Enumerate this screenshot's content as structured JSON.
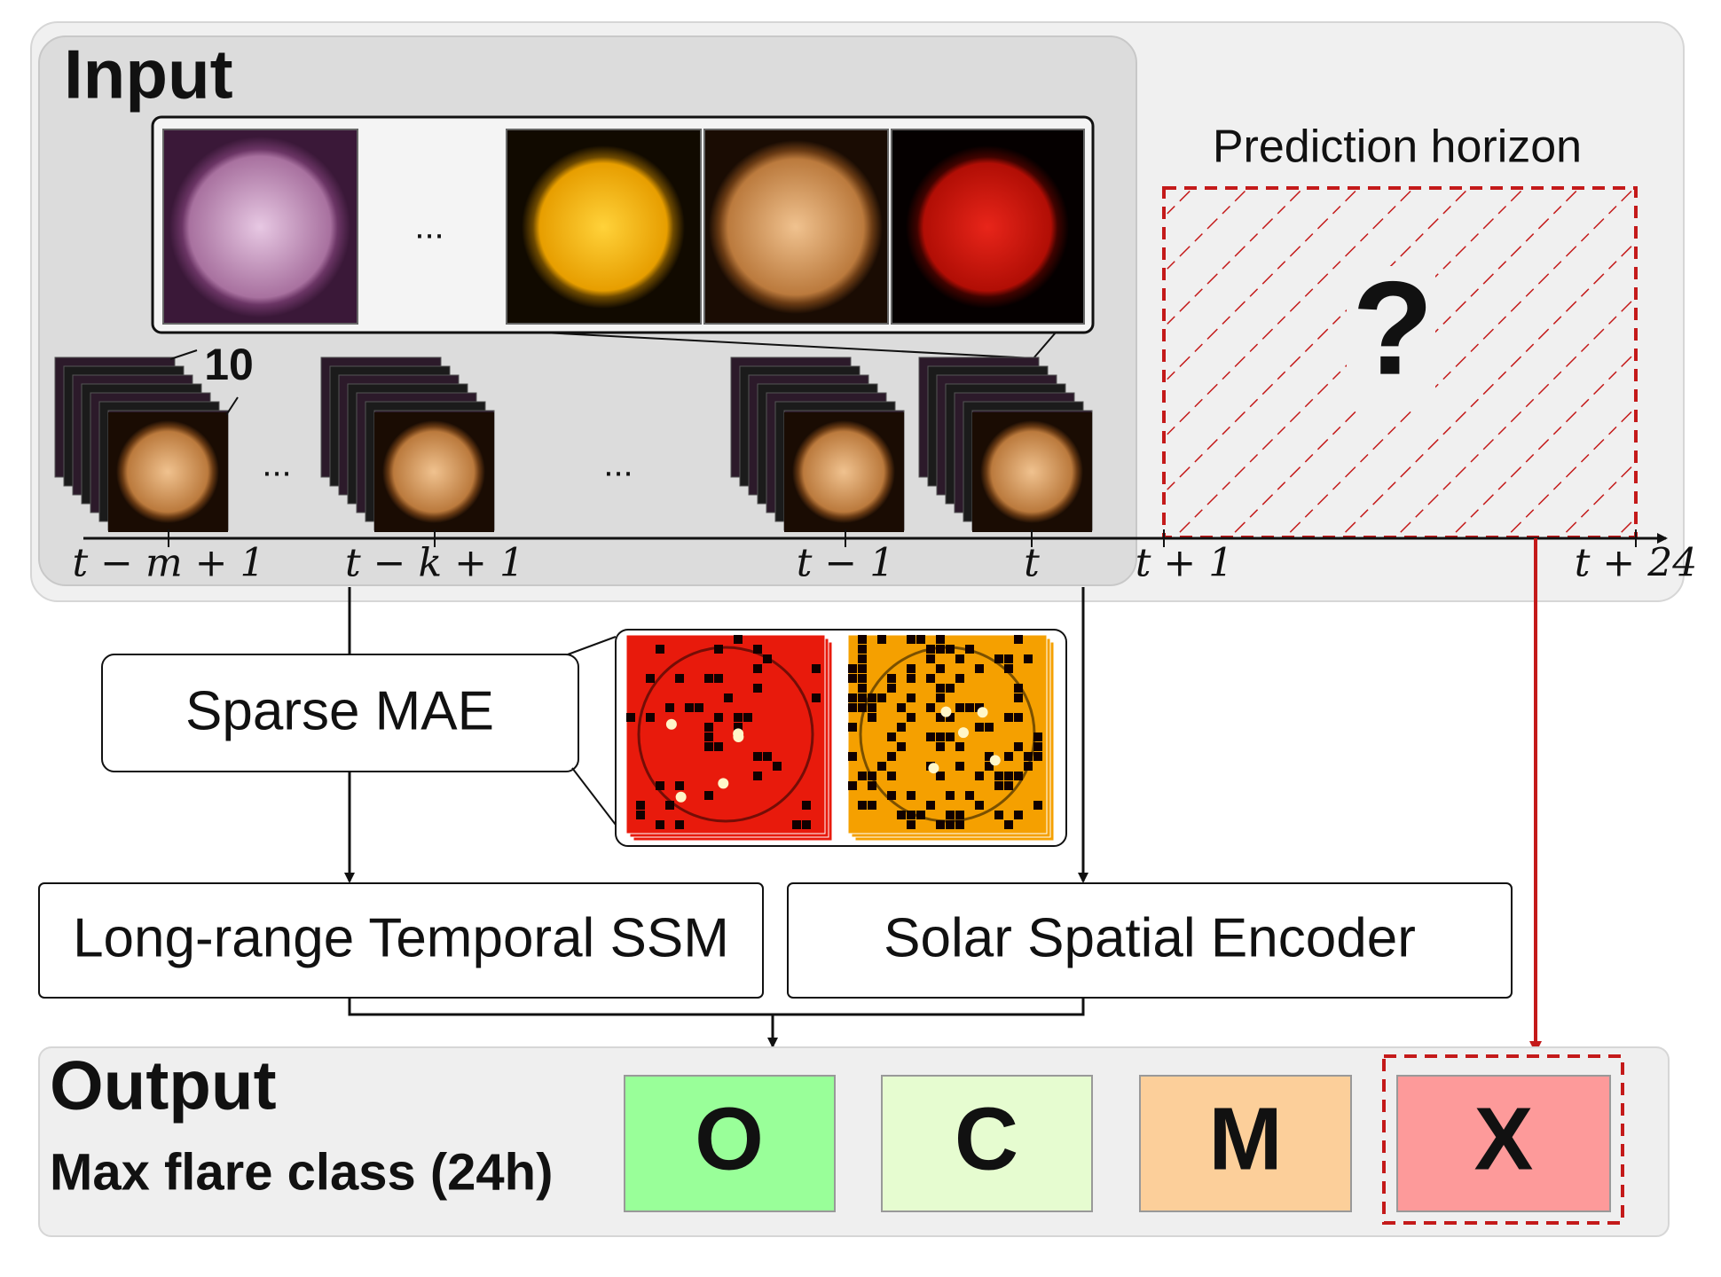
{
  "input": {
    "title": "Input",
    "ellipses": [
      "...",
      "...",
      "..."
    ],
    "channel_count": "10"
  },
  "timeline": {
    "labels": [
      "t − m + 1",
      "t − k + 1",
      "t − 1",
      "t",
      "t + 1",
      "t + 24"
    ]
  },
  "prediction": {
    "title": "Prediction horizon",
    "unknown": "?"
  },
  "modules": {
    "mae": "Sparse MAE",
    "ssm": "Long-range Temporal SSM",
    "encoder": "Solar Spatial Encoder"
  },
  "output": {
    "title": "Output",
    "subtitle": "Max flare class (24h)",
    "classes": [
      "O",
      "C",
      "M",
      "X"
    ]
  }
}
